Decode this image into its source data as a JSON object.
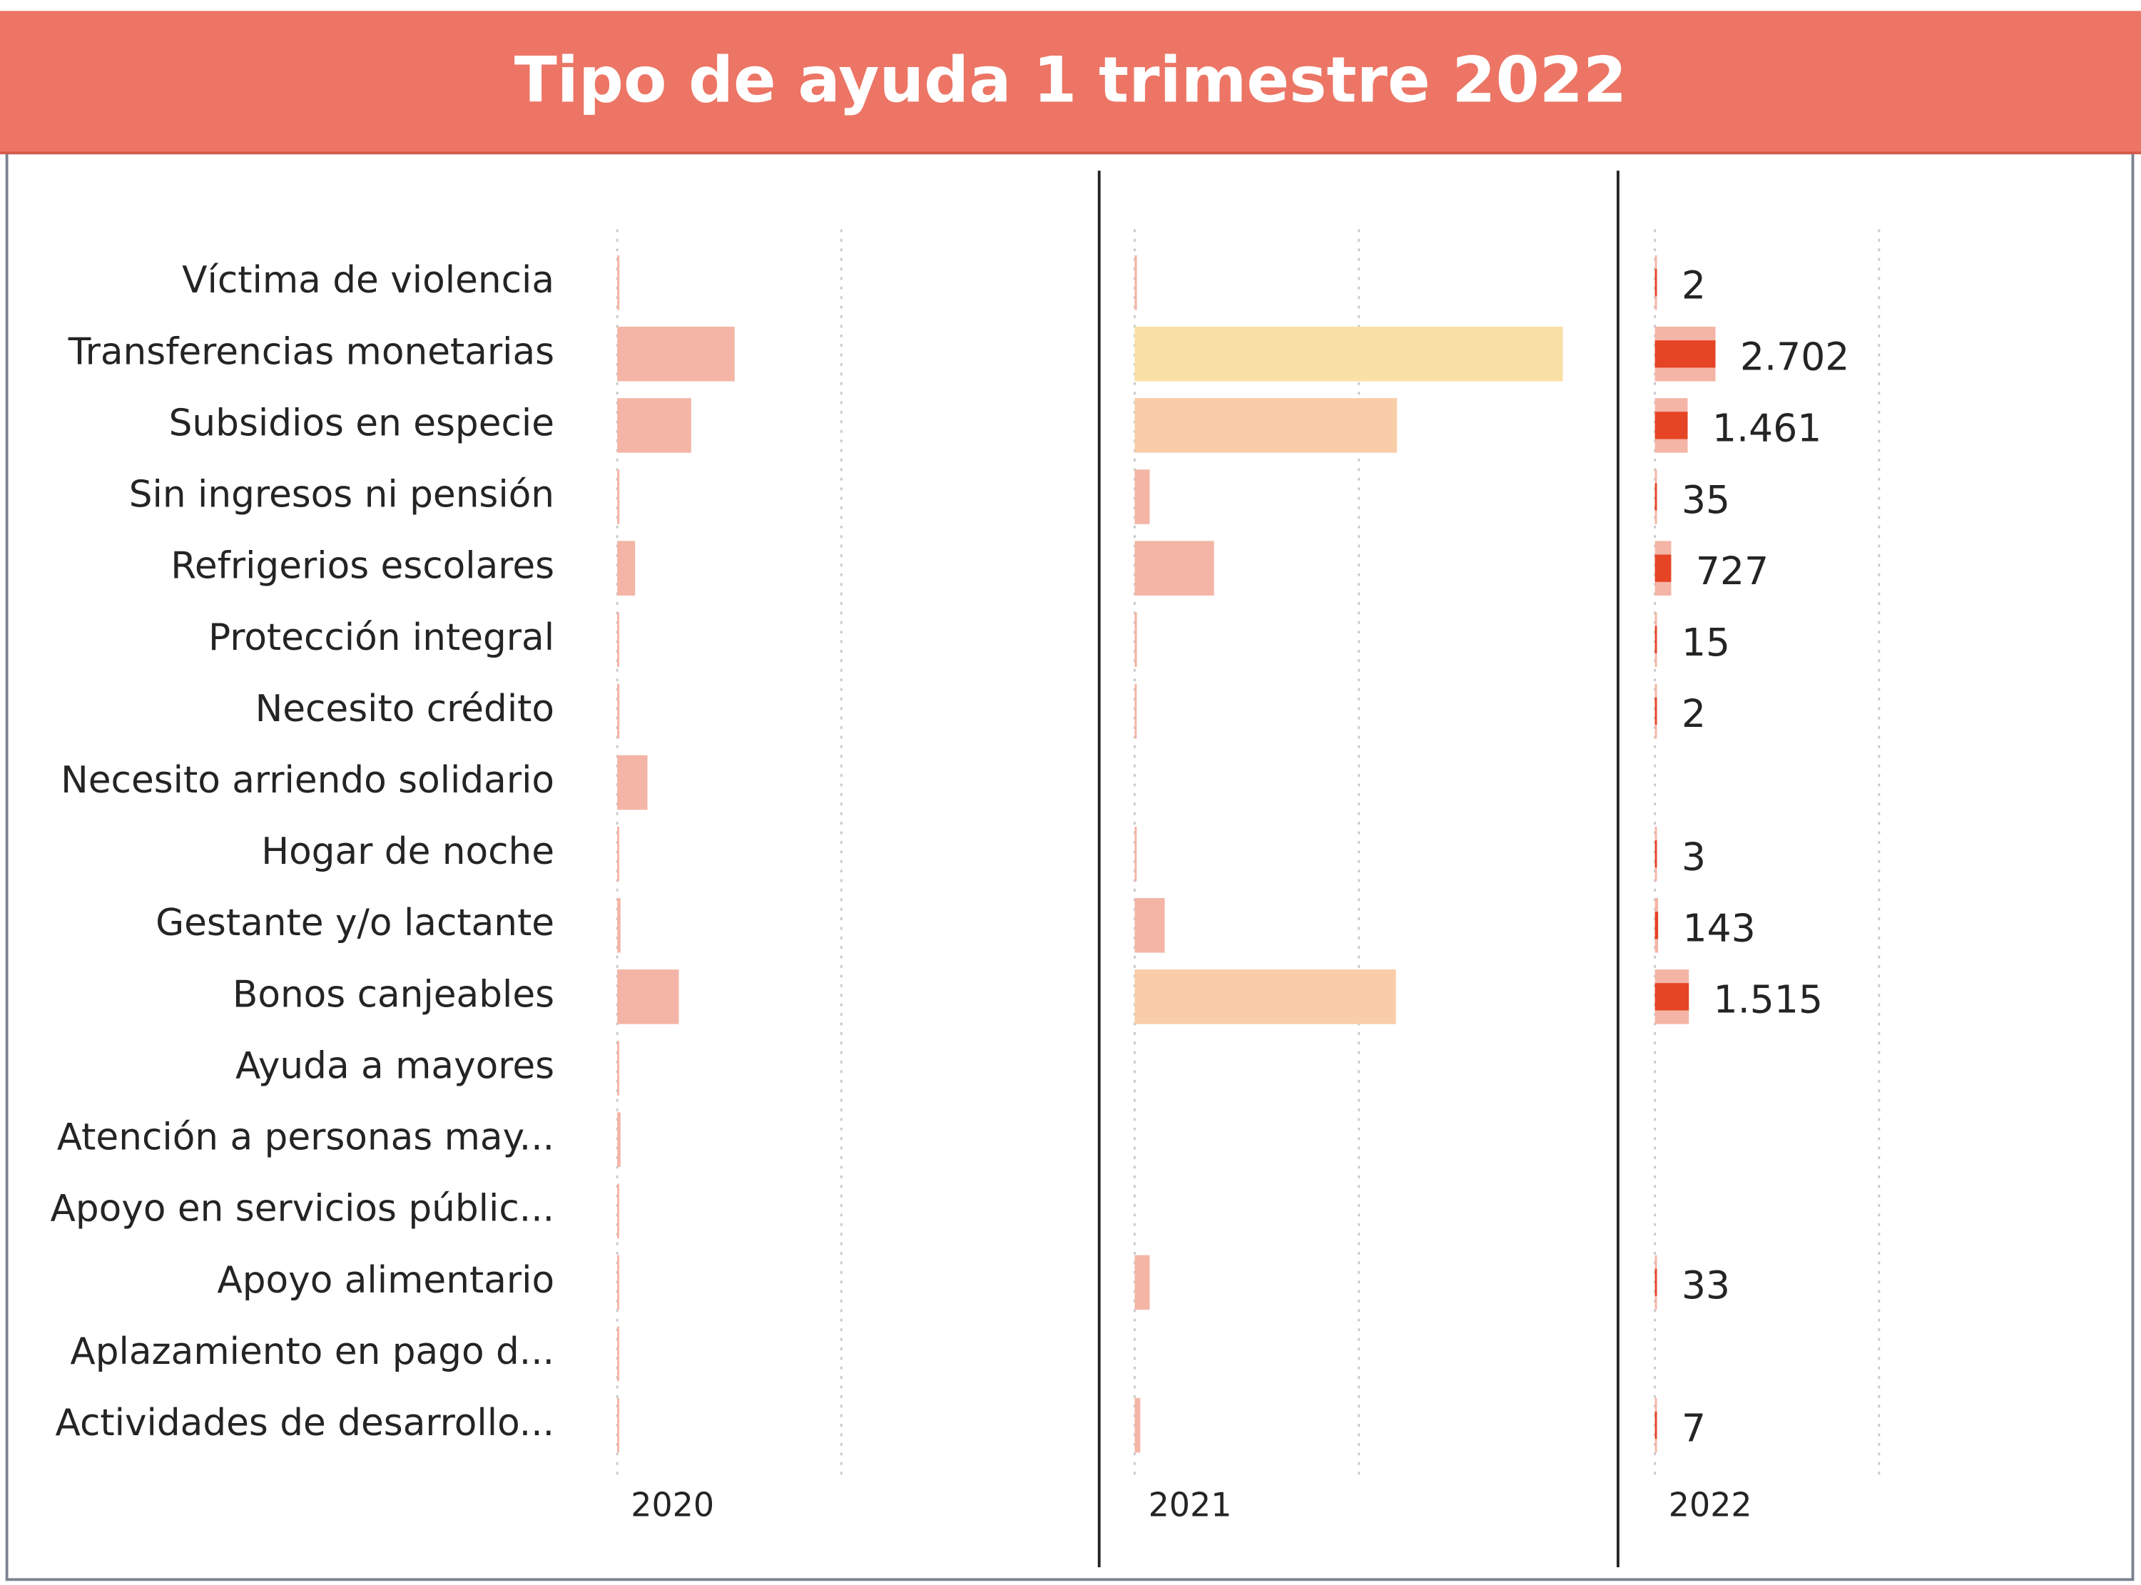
{
  "chart_data": {
    "type": "bar",
    "title": "Tipo de ayuda 1 trimestre 2022",
    "orientation": "horizontal",
    "categories": [
      "Víctima de violencia",
      "Transferencias monetarias",
      "Subsidios en especie",
      "Sin ingresos ni pensión",
      "Refrigerios escolares",
      "Protección integral",
      "Necesito crédito",
      "Necesito arriendo solidario",
      "Hogar de noche",
      "Gestante y/o lactante",
      "Bonos canjeables",
      "Ayuda a mayores",
      "Atención a personas may...",
      "Apoyo en servicios públic...",
      "Apoyo alimentario",
      "Aplazamiento en pago d...",
      "Actividades de desarrollo..."
    ],
    "xlim": [
      0,
      21500
    ],
    "xticks": [
      0,
      10000
    ],
    "grid": true,
    "series": [
      {
        "name": "2020",
        "color": "#f4b5a6",
        "values": [
          100,
          5240,
          3300,
          100,
          800,
          50,
          100,
          1350,
          50,
          150,
          2750,
          50,
          150,
          50,
          50,
          50,
          50
        ]
      },
      {
        "name": "2021",
        "color": "#f4b5a6",
        "colors": [
          "#f4b5a6",
          "#fae0a6",
          "#f8cda8",
          "#f4b5a6",
          "#f4b5a6",
          "#f4b5a6",
          "#f4b5a6",
          "#f4b5a6",
          "#f4b5a6",
          "#f4b5a6",
          "#f8cda8",
          "#f4b5a6",
          "#f4b5a6",
          "#f4b5a6",
          "#f4b5a6",
          "#f4b5a6",
          "#f4b5a6"
        ],
        "values": [
          100,
          19100,
          11700,
          670,
          3540,
          100,
          50,
          null,
          50,
          1340,
          11650,
          null,
          null,
          null,
          670,
          null,
          250
        ]
      },
      {
        "name": "2022",
        "color": "#f4b5a6",
        "highlight_color": "#e54425",
        "values": [
          2,
          2702,
          1461,
          35,
          727,
          15,
          2,
          null,
          3,
          143,
          1515,
          null,
          null,
          null,
          33,
          null,
          7
        ],
        "value_labels": [
          "2",
          "2.702",
          "1.461",
          "35",
          "727",
          "15",
          "2",
          null,
          "3",
          "143",
          "1.515",
          null,
          null,
          null,
          "33",
          null,
          "7"
        ]
      }
    ]
  }
}
